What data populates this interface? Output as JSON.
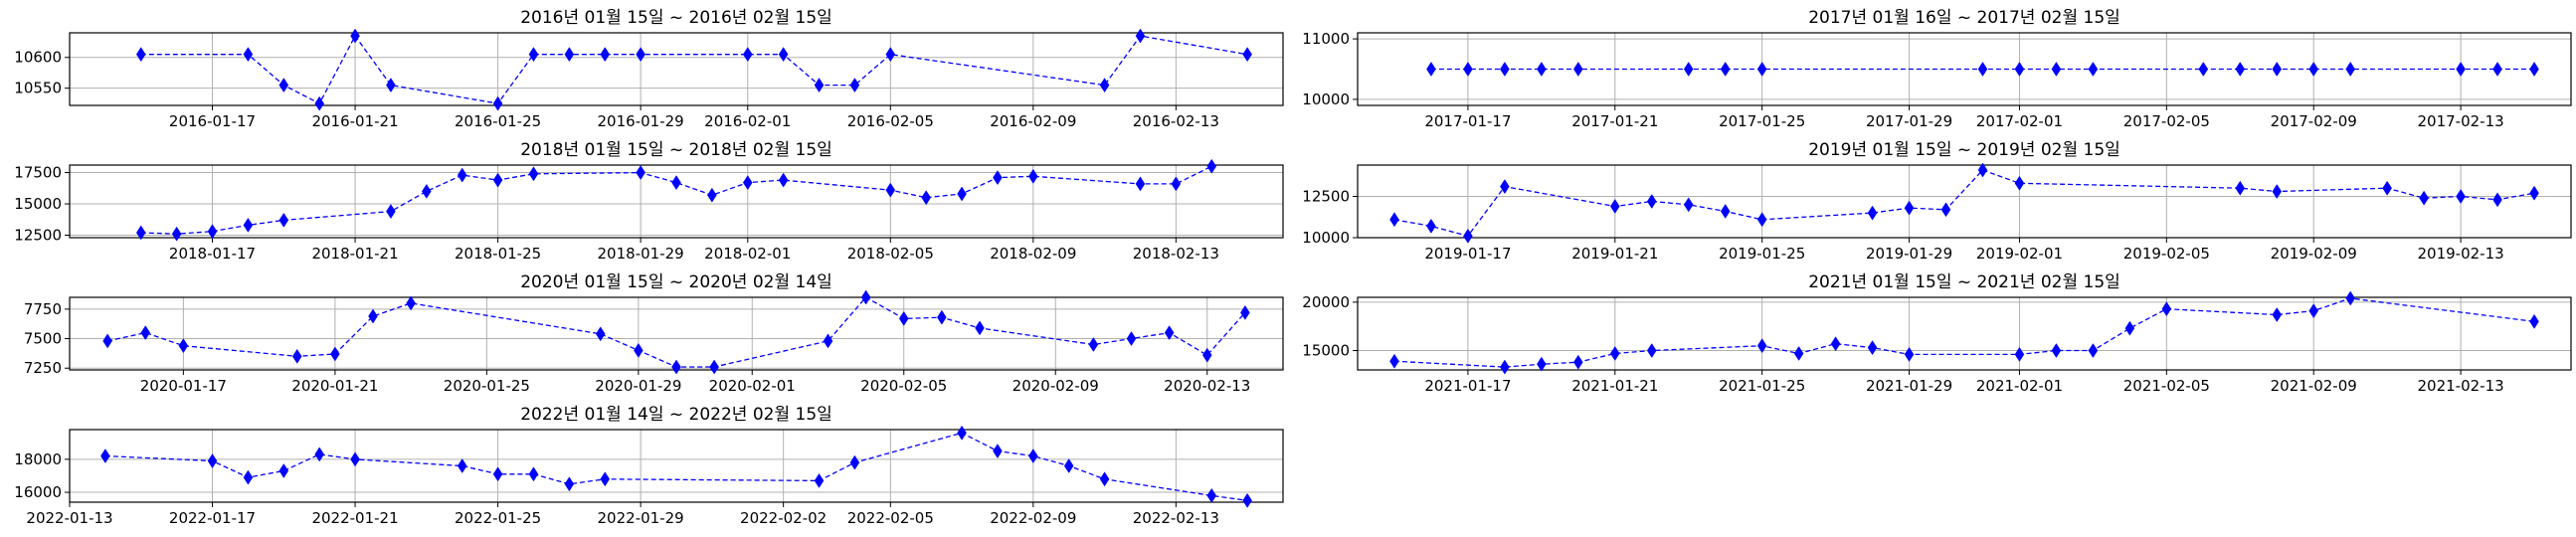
{
  "chart_data": [
    {
      "type": "line",
      "title": "2016년 01월 15일 ~ 2016년 02월 15일",
      "xlim": [
        "2016-01-13",
        "2016-02-16"
      ],
      "ylim": [
        10522,
        10640
      ],
      "yticks": [
        10550,
        10600
      ],
      "xticks": [
        "2016-01-17",
        "2016-01-21",
        "2016-01-25",
        "2016-01-29",
        "2016-02-01",
        "2016-02-05",
        "2016-02-09",
        "2016-02-13"
      ],
      "grid": true,
      "series": [
        {
          "x": [
            "2016-01-15",
            "2016-01-18",
            "2016-01-19",
            "2016-01-20",
            "2016-01-21",
            "2016-01-22",
            "2016-01-25",
            "2016-01-26",
            "2016-01-27",
            "2016-01-28",
            "2016-01-29",
            "2016-02-01",
            "2016-02-02",
            "2016-02-03",
            "2016-02-04",
            "2016-02-05",
            "2016-02-11",
            "2016-02-12",
            "2016-02-15"
          ],
          "values": [
            10605,
            10605,
            10555,
            10525,
            10635,
            10555,
            10525,
            10605,
            10605,
            10605,
            10605,
            10605,
            10605,
            10555,
            10555,
            10605,
            10555,
            10635,
            10605
          ]
        }
      ]
    },
    {
      "type": "line",
      "title": "2017년 01월 16일 ~ 2017년 02월 15일",
      "xlim": [
        "2017-01-14",
        "2017-02-16"
      ],
      "ylim": [
        9900,
        11100
      ],
      "yticks": [
        10000,
        11000
      ],
      "xticks": [
        "2017-01-17",
        "2017-01-21",
        "2017-01-25",
        "2017-01-29",
        "2017-02-01",
        "2017-02-05",
        "2017-02-09",
        "2017-02-13"
      ],
      "grid": true,
      "series": [
        {
          "x": [
            "2017-01-16",
            "2017-01-17",
            "2017-01-18",
            "2017-01-19",
            "2017-01-20",
            "2017-01-23",
            "2017-01-24",
            "2017-01-25",
            "2017-01-31",
            "2017-02-01",
            "2017-02-02",
            "2017-02-03",
            "2017-02-06",
            "2017-02-07",
            "2017-02-08",
            "2017-02-09",
            "2017-02-10",
            "2017-02-13",
            "2017-02-14",
            "2017-02-15"
          ],
          "values": [
            10500,
            10500,
            10500,
            10500,
            10500,
            10500,
            10500,
            10500,
            10500,
            10500,
            10500,
            10500,
            10500,
            10500,
            10500,
            10500,
            10500,
            10500,
            10500,
            10500
          ]
        }
      ]
    },
    {
      "type": "line",
      "title": "2018년 01월 15일 ~ 2018년 02월 15일",
      "xlim": [
        "2018-01-13",
        "2018-02-16"
      ],
      "ylim": [
        12300,
        18100
      ],
      "yticks": [
        12500,
        15000,
        17500
      ],
      "xticks": [
        "2018-01-17",
        "2018-01-21",
        "2018-01-25",
        "2018-01-29",
        "2018-02-01",
        "2018-02-05",
        "2018-02-09",
        "2018-02-13"
      ],
      "grid": true,
      "series": [
        {
          "x": [
            "2018-01-15",
            "2018-01-16",
            "2018-01-17",
            "2018-01-18",
            "2018-01-19",
            "2018-01-22",
            "2018-01-23",
            "2018-01-24",
            "2018-01-25",
            "2018-01-26",
            "2018-01-29",
            "2018-01-30",
            "2018-01-31",
            "2018-02-01",
            "2018-02-02",
            "2018-02-05",
            "2018-02-06",
            "2018-02-07",
            "2018-02-08",
            "2018-02-09",
            "2018-02-12",
            "2018-02-13",
            "2018-02-14"
          ],
          "values": [
            12700,
            12600,
            12800,
            13300,
            13700,
            14400,
            16000,
            17300,
            16900,
            17400,
            17500,
            16700,
            15700,
            16700,
            16900,
            16100,
            15500,
            15800,
            17100,
            17200,
            16600,
            16600,
            18000
          ]
        }
      ]
    },
    {
      "type": "line",
      "title": "2019년 01월 15일 ~ 2019년 02월 15일",
      "xlim": [
        "2019-01-14",
        "2019-02-16"
      ],
      "ylim": [
        10000,
        14400
      ],
      "yticks": [
        10000,
        12500
      ],
      "xticks": [
        "2019-01-17",
        "2019-01-21",
        "2019-01-25",
        "2019-01-29",
        "2019-02-01",
        "2019-02-05",
        "2019-02-09",
        "2019-02-13"
      ],
      "grid": true,
      "series": [
        {
          "x": [
            "2019-01-15",
            "2019-01-16",
            "2019-01-17",
            "2019-01-18",
            "2019-01-21",
            "2019-01-22",
            "2019-01-23",
            "2019-01-24",
            "2019-01-25",
            "2019-01-28",
            "2019-01-29",
            "2019-01-30",
            "2019-01-31",
            "2019-02-01",
            "2019-02-07",
            "2019-02-08",
            "2019-02-11",
            "2019-02-12",
            "2019-02-13",
            "2019-02-14",
            "2019-02-15"
          ],
          "values": [
            11100,
            10700,
            10100,
            13100,
            11900,
            12200,
            12000,
            11600,
            11100,
            11500,
            11800,
            11700,
            14100,
            13300,
            13000,
            12800,
            13000,
            12400,
            12500,
            12300,
            12700
          ]
        }
      ]
    },
    {
      "type": "line",
      "title": "2020년 01월 15일 ~ 2020년 02월 14일",
      "xlim": [
        "2020-01-14",
        "2020-02-15"
      ],
      "ylim": [
        7235,
        7850
      ],
      "yticks": [
        7250,
        7500,
        7750
      ],
      "xticks": [
        "2020-01-17",
        "2020-01-21",
        "2020-01-25",
        "2020-01-29",
        "2020-02-01",
        "2020-02-05",
        "2020-02-09",
        "2020-02-13"
      ],
      "grid": true,
      "series": [
        {
          "x": [
            "2020-01-15",
            "2020-01-16",
            "2020-01-17",
            "2020-01-20",
            "2020-01-21",
            "2020-01-22",
            "2020-01-23",
            "2020-01-28",
            "2020-01-29",
            "2020-01-30",
            "2020-01-31",
            "2020-02-03",
            "2020-02-04",
            "2020-02-05",
            "2020-02-06",
            "2020-02-07",
            "2020-02-10",
            "2020-02-11",
            "2020-02-12",
            "2020-02-13",
            "2020-02-14"
          ],
          "values": [
            7480,
            7550,
            7440,
            7350,
            7370,
            7690,
            7800,
            7540,
            7400,
            7260,
            7260,
            7480,
            7850,
            7670,
            7680,
            7590,
            7450,
            7500,
            7550,
            7360,
            7720
          ]
        }
      ]
    },
    {
      "type": "line",
      "title": "2021년 01월 15일 ~ 2021년 02월 15일",
      "xlim": [
        "2021-01-14",
        "2021-02-16"
      ],
      "ylim": [
        13000,
        20500
      ],
      "yticks": [
        15000,
        20000
      ],
      "xticks": [
        "2021-01-17",
        "2021-01-21",
        "2021-01-25",
        "2021-01-29",
        "2021-02-01",
        "2021-02-05",
        "2021-02-09",
        "2021-02-13"
      ],
      "grid": true,
      "series": [
        {
          "x": [
            "2021-01-15",
            "2021-01-18",
            "2021-01-19",
            "2021-01-20",
            "2021-01-21",
            "2021-01-22",
            "2021-01-25",
            "2021-01-26",
            "2021-01-27",
            "2021-01-28",
            "2021-01-29",
            "2021-02-01",
            "2021-02-02",
            "2021-02-03",
            "2021-02-04",
            "2021-02-05",
            "2021-02-08",
            "2021-02-09",
            "2021-02-10",
            "2021-02-15"
          ],
          "values": [
            13900,
            13300,
            13600,
            13800,
            14700,
            15000,
            15500,
            14700,
            15700,
            15300,
            14600,
            14600,
            15000,
            15000,
            17300,
            19300,
            18700,
            19100,
            20400,
            18000
          ]
        }
      ]
    },
    {
      "type": "line",
      "title": "2022년 01월 14일 ~ 2022년 02월 15일",
      "xlim": [
        "2022-01-13",
        "2022-02-16"
      ],
      "ylim": [
        15400,
        19800
      ],
      "yticks": [
        16000,
        18000
      ],
      "xticks": [
        "2022-01-13",
        "2022-01-17",
        "2022-01-21",
        "2022-01-25",
        "2022-01-29",
        "2022-02-02",
        "2022-02-05",
        "2022-02-09",
        "2022-02-13"
      ],
      "grid": true,
      "series": [
        {
          "x": [
            "2022-01-14",
            "2022-01-17",
            "2022-01-18",
            "2022-01-19",
            "2022-01-20",
            "2022-01-21",
            "2022-01-24",
            "2022-01-25",
            "2022-01-26",
            "2022-01-27",
            "2022-01-28",
            "2022-02-03",
            "2022-02-04",
            "2022-02-07",
            "2022-02-08",
            "2022-02-09",
            "2022-02-10",
            "2022-02-11",
            "2022-02-14",
            "2022-02-15"
          ],
          "values": [
            18200,
            17900,
            16900,
            17300,
            18300,
            18000,
            17600,
            17100,
            17100,
            16500,
            16800,
            16700,
            17800,
            19600,
            18500,
            18200,
            17600,
            16800,
            15800,
            15500
          ]
        }
      ]
    }
  ],
  "colors": {
    "line": "#0000ff",
    "marker": "#0000ff",
    "grid": "#b0b0b0",
    "axis": "#000000"
  }
}
